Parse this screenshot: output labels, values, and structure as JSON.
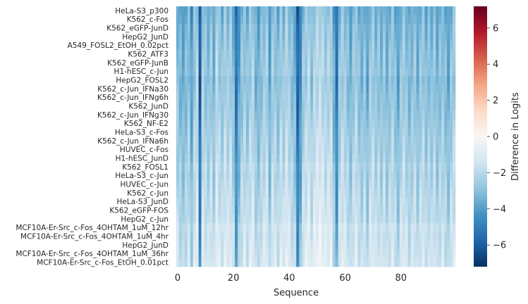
{
  "chart_data": {
    "type": "heatmap",
    "xlabel": "Sequence",
    "colorbar_label": "Difference in Logits",
    "x_range": [
      0,
      99
    ],
    "x_ticks": [
      0,
      20,
      40,
      60,
      80
    ],
    "colorbar_range": [
      -7.2,
      7.2
    ],
    "colorbar_ticks": [
      6,
      4,
      2,
      0,
      -2,
      -4,
      -6
    ],
    "colormap": "RdBu_r",
    "colormap_stops": [
      "#053061",
      "#2166ac",
      "#4393c3",
      "#92c5de",
      "#d1e5f0",
      "#f7f7f7",
      "#fddbc7",
      "#f4a582",
      "#d6604d",
      "#b2182b",
      "#67001f"
    ],
    "rows": [
      "HeLa-S3_p300",
      "K562_c-Fos",
      "K562_eGFP-JunD",
      "HepG2_JunD",
      "A549_FOSL2_EtOH_0.02pct",
      "K562_ATF3",
      "K562_eGFP-JunB",
      "H1-hESC_c-Jun",
      "HepG2_FOSL2",
      "K562_c-Jun_IFNa30",
      "K562_c-Jun_IFNg6h",
      "K562_JunD",
      "K562_c-Jun_IFNg30",
      "K562_NF-E2",
      "HeLa-S3_c-Fos",
      "K562_c-Jun_IFNa6h",
      "HUVEC_c-Fos",
      "H1-hESC_JunD",
      "K562_FOSL1",
      "HeLa-S3_c-Jun",
      "HUVEC_c-Jun",
      "K562_c-Jun",
      "HeLa-S3_JunD",
      "K562_eGFP-FOS",
      "HepG2_c-Jun",
      "MCF10A-Er-Src_c-Fos_4OHTAM_1uM_12hr",
      "MCF10A-Er-Src_c-Fos_4OHTAM_1uM_4hr",
      "HepG2_JunD",
      "MCF10A-Er-Src_c-Fos_4OHTAM_1uM_36hr",
      "MCF10A-Er-Src_c-Fos_EtOH_0.01pct"
    ],
    "n_columns": 100,
    "column_profile": [
      -2.6,
      -2.9,
      -3.2,
      -2.8,
      -2.4,
      -3.6,
      -2.3,
      -1.8,
      -5.6,
      -2.0,
      -2.4,
      -2.7,
      -2.2,
      -3.0,
      -1.6,
      -2.2,
      -2.6,
      -1.9,
      -2.3,
      -2.0,
      -2.8,
      -4.9,
      -3.5,
      -2.5,
      -2.2,
      -2.7,
      -2.1,
      -1.9,
      -2.9,
      -3.1,
      -2.5,
      -2.2,
      -2.0,
      -3.4,
      -2.1,
      -2.3,
      -2.8,
      -2.0,
      -2.4,
      -1.7,
      -2.2,
      -2.6,
      -3.0,
      -5.4,
      -4.1,
      -2.3,
      -2.0,
      -1.7,
      -2.5,
      -1.8,
      -1.6,
      -1.5,
      -1.7,
      -2.1,
      -1.9,
      -1.8,
      -3.2,
      -4.8,
      -2.4,
      -2.0,
      -2.2,
      -2.6,
      -3.1,
      -2.3,
      -2.0,
      -2.7,
      -2.9,
      -2.4,
      -3.3,
      -2.2,
      -2.1,
      -2.6,
      -2.4,
      -2.8,
      -2.3,
      -3.0,
      -2.5,
      -2.2,
      -2.7,
      -3.4,
      -2.4,
      -2.1,
      -2.5,
      -2.9,
      -2.6,
      -2.3,
      -3.1,
      -2.4,
      -2.2,
      -2.8,
      -2.5,
      -2.7,
      -2.3,
      -3.0,
      -2.6,
      -2.4,
      -2.8,
      -3.3,
      -2.5,
      -2.2
    ],
    "row_offset": [
      0.9,
      0.8,
      0.6,
      0.6,
      0.5,
      0.4,
      0.4,
      0.3,
      0.5,
      0.4,
      0.3,
      0.3,
      0.2,
      0.1,
      0.0,
      -0.1,
      -0.1,
      -0.2,
      -0.4,
      -0.3,
      -0.4,
      -0.5,
      -0.6,
      -0.6,
      -0.7,
      -1.0,
      -0.9,
      -1.0,
      -1.1,
      -1.2
    ],
    "value_note_none": ""
  }
}
